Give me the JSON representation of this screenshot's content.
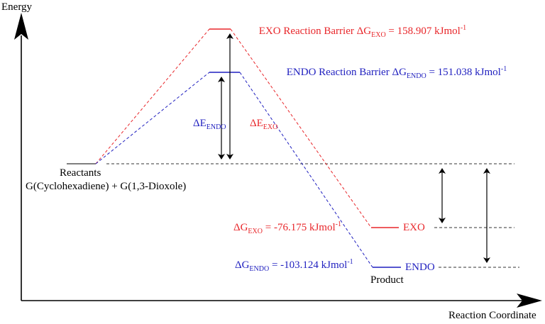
{
  "axes": {
    "y_label": "Energy",
    "x_label": "Reaction Coordinate"
  },
  "reactants": {
    "title": "Reactants",
    "formula": "G(Cyclohexadiene) + G(1,3-Dioxole)"
  },
  "product": {
    "title": "Product"
  },
  "exo": {
    "barrier_prefix": "EXO Reaction Barrier ",
    "barrier_sym": "ΔG",
    "barrier_sub": "EXO",
    "barrier_value": " = 158.907 kJmol",
    "barrier_sup": "-1",
    "de_sym": "ΔE",
    "de_sub": "EXO",
    "dg_sym": "ΔG",
    "dg_sub": "EXO",
    "dg_value": " = -76.175 kJmol",
    "dg_sup": "-1",
    "product_label": "EXO"
  },
  "endo": {
    "barrier_prefix": "ENDO Reaction Barrier ",
    "barrier_sym": "ΔG",
    "barrier_sub": "ENDO",
    "barrier_value": " = 151.038 kJmol",
    "barrier_sup": "-1",
    "de_sym": "ΔE",
    "de_sub": "ENDO",
    "dg_sym": "ΔG",
    "dg_sub": "ENDO",
    "dg_value": " = -103.124 kJmol",
    "dg_sup": "-1",
    "product_label": "ENDO"
  },
  "colors": {
    "exo": "#e8262a",
    "endo": "#1f1fbf",
    "axis": "#000000",
    "reference": "#333333"
  }
}
